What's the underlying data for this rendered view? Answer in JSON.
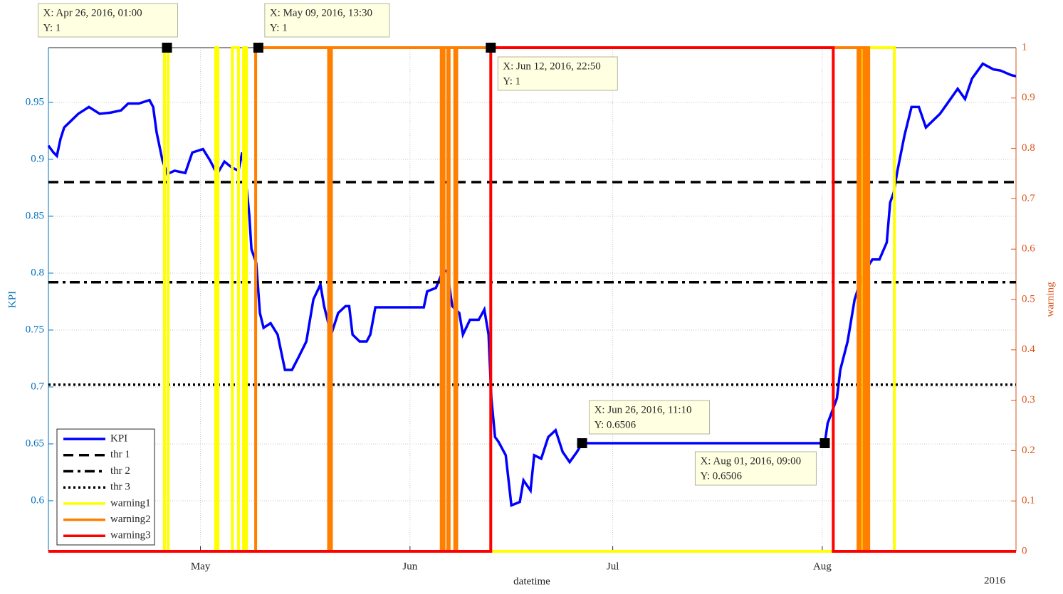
{
  "chart_data": {
    "type": "line",
    "xlabel": "datetime",
    "x_secondary_label": "2016",
    "ylabel": "KPI",
    "y2label": "warning",
    "y_color": "#0072bd",
    "y2_color": "#d95319",
    "xlim": [
      "2016-04-08T12:00",
      "2016-08-29T16:00"
    ],
    "xticks": [
      {
        "value": "2016-05-01T00:00",
        "label": "May"
      },
      {
        "value": "2016-06-01T00:00",
        "label": "Jun"
      },
      {
        "value": "2016-07-01T00:00",
        "label": "Jul"
      },
      {
        "value": "2016-08-01T00:00",
        "label": "Aug"
      }
    ],
    "ylim": [
      0.5556,
      0.9981
    ],
    "yticks": [
      0.6,
      0.65,
      0.7,
      0.75,
      0.8,
      0.85,
      0.9,
      0.95
    ],
    "y2lim": [
      0,
      1
    ],
    "y2ticks": [
      0,
      0.1,
      0.2,
      0.3,
      0.4,
      0.5,
      0.6,
      0.7,
      0.8,
      0.9,
      1
    ],
    "grid": true,
    "legend_position": "southwest",
    "series": [
      {
        "name": "KPI",
        "color": "#0000ff",
        "style": "solid",
        "x": [
          "2016-04-08T12:00",
          "2016-04-09T06:00",
          "2016-04-09T18:00",
          "2016-04-10T07:00",
          "2016-04-10T20:00",
          "2016-04-11T21:00",
          "2016-04-12T22:00",
          "2016-04-14T12:00",
          "2016-04-16T02:00",
          "2016-04-17T16:00",
          "2016-04-19T06:00",
          "2016-04-20T07:00",
          "2016-04-21T21:00",
          "2016-04-23T11:00",
          "2016-04-24T00:00",
          "2016-04-24T12:00",
          "2016-04-25T09:00",
          "2016-04-26T02:00",
          "2016-04-27T04:00",
          "2016-04-28T18:00",
          "2016-04-29T19:00",
          "2016-05-01T09:00",
          "2016-05-02T10:00",
          "2016-05-03T11:00",
          "2016-05-04T13:00",
          "2016-05-05T14:00",
          "2016-05-06T15:00",
          "2016-05-07T04:00",
          "2016-05-07T16:00",
          "2016-05-08T05:00",
          "2016-05-08T13:00",
          "2016-05-09T06:00",
          "2016-05-09T19:00",
          "2016-05-10T08:00",
          "2016-05-11T09:00",
          "2016-05-12T10:00",
          "2016-05-13T12:00",
          "2016-05-14T13:00",
          "2016-05-15T14:00",
          "2016-05-16T16:00",
          "2016-05-17T17:00",
          "2016-05-18T18:00",
          "2016-05-19T07:00",
          "2016-05-20T08:00",
          "2016-05-21T09:00",
          "2016-05-22T11:00",
          "2016-05-23T00:00",
          "2016-05-23T12:00",
          "2016-05-24T13:00",
          "2016-05-25T14:00",
          "2016-05-26T03:00",
          "2016-05-26T21:00",
          "2016-06-03T01:00",
          "2016-06-03T13:00",
          "2016-06-04T20:00",
          "2016-06-05T21:00",
          "2016-06-06T12:00",
          "2016-06-07T06:00",
          "2016-06-08T07:00",
          "2016-06-08T20:00",
          "2016-06-09T21:00",
          "2016-06-11T04:00",
          "2016-06-12T00:00",
          "2016-06-12T15:00",
          "2016-06-13T01:00",
          "2016-06-13T14:00",
          "2016-06-14T02:00",
          "2016-06-15T04:00",
          "2016-06-16T00:00",
          "2016-06-17T06:00",
          "2016-06-17T19:00",
          "2016-06-18T20:00",
          "2016-06-19T09:00",
          "2016-06-20T10:00",
          "2016-06-21T11:00",
          "2016-06-22T13:00",
          "2016-06-23T14:00",
          "2016-06-24T15:00",
          "2016-06-25T17:00",
          "2016-06-26T11:10",
          "2016-08-01T09:00",
          "2016-08-01T19:00",
          "2016-08-02T10:00",
          "2016-08-03T04:00",
          "2016-08-03T16:00",
          "2016-08-04T18:00",
          "2016-08-05T19:00",
          "2016-08-06T12:00",
          "2016-08-07T08:00",
          "2016-08-08T10:00",
          "2016-08-09T11:00",
          "2016-08-10T13:00",
          "2016-08-11T01:00",
          "2016-08-11T14:00",
          "2016-08-12T03:00",
          "2016-08-13T04:00",
          "2016-08-14T05:00",
          "2016-08-15T07:00",
          "2016-08-16T08:00",
          "2016-08-17T09:00",
          "2016-08-18T10:00",
          "2016-08-19T12:00",
          "2016-08-21T01:00",
          "2016-08-22T03:00",
          "2016-08-23T04:00",
          "2016-08-24T18:00",
          "2016-08-26T08:00",
          "2016-08-27T09:00",
          "2016-08-28T23:00",
          "2016-08-29T16:00"
        ],
        "values": [
          0.912,
          0.906,
          0.903,
          0.918,
          0.928,
          0.934,
          0.94,
          0.946,
          0.94,
          0.941,
          0.943,
          0.949,
          0.949,
          0.952,
          0.946,
          0.924,
          0.899,
          0.887,
          0.89,
          0.888,
          0.906,
          0.909,
          0.899,
          0.887,
          0.898,
          0.893,
          0.89,
          0.906,
          0.884,
          0.852,
          0.821,
          0.809,
          0.765,
          0.752,
          0.756,
          0.746,
          0.715,
          0.715,
          0.727,
          0.74,
          0.777,
          0.79,
          0.771,
          0.746,
          0.765,
          0.771,
          0.771,
          0.746,
          0.74,
          0.74,
          0.746,
          0.77,
          0.77,
          0.784,
          0.787,
          0.802,
          0.802,
          0.771,
          0.765,
          0.746,
          0.759,
          0.759,
          0.768,
          0.746,
          0.69,
          0.656,
          0.652,
          0.64,
          0.596,
          0.599,
          0.618,
          0.609,
          0.64,
          0.637,
          0.656,
          0.662,
          0.643,
          0.634,
          0.643,
          0.6506,
          0.6506,
          0.668,
          0.678,
          0.69,
          0.715,
          0.74,
          0.777,
          0.79,
          0.802,
          0.812,
          0.812,
          0.827,
          0.862,
          0.871,
          0.89,
          0.921,
          0.946,
          0.946,
          0.928,
          0.934,
          0.94,
          0.949,
          0.962,
          0.953,
          0.971,
          0.984,
          0.979,
          0.978,
          0.974,
          0.973
        ]
      },
      {
        "name": "thr 1",
        "color": "#000000",
        "style": "dashed",
        "value": 0.88
      },
      {
        "name": "thr 2",
        "color": "#000000",
        "style": "dashdot",
        "value": 0.792
      },
      {
        "name": "thr 3",
        "color": "#000000",
        "style": "dotted",
        "value": 0.702
      },
      {
        "name": "warning1",
        "color": "#ffff00",
        "style": "solid",
        "axis": "y2",
        "x": [
          "2016-04-08T12:00",
          "2016-04-25T16:00",
          "2016-04-25T16:00",
          "2016-04-26T05:00",
          "2016-04-26T05:00",
          "2016-05-03T06:00",
          "2016-05-03T06:00",
          "2016-05-03T14:00",
          "2016-05-03T14:00",
          "2016-05-05T17:00",
          "2016-05-05T17:00",
          "2016-05-06T15:00",
          "2016-05-06T15:00",
          "2016-05-07T09:00",
          "2016-05-07T09:00",
          "2016-05-07T19:00",
          "2016-05-07T19:00",
          "2016-08-07T01:00",
          "2016-08-07T01:00",
          "2016-08-11T16:00",
          "2016-08-11T16:00",
          "2016-08-29T16:00"
        ],
        "values": [
          0,
          0,
          1,
          1,
          0,
          0,
          1,
          1,
          0,
          0,
          1,
          1,
          0,
          0,
          1,
          1,
          0,
          0,
          1,
          1,
          0,
          0
        ]
      },
      {
        "name": "warning2",
        "color": "#ff8000",
        "style": "solid",
        "axis": "y2",
        "x": [
          "2016-04-08T12:00",
          "2016-05-09T04:00",
          "2016-05-09T04:00",
          "2016-05-19T23:00",
          "2016-05-19T23:00",
          "2016-05-20T09:00",
          "2016-05-20T09:00",
          "2016-06-05T15:00",
          "2016-06-05T15:00",
          "2016-06-06T01:00",
          "2016-06-06T01:00",
          "2016-06-06T14:00",
          "2016-06-06T14:00",
          "2016-06-06T19:00",
          "2016-06-06T19:00",
          "2016-06-07T15:00",
          "2016-06-07T15:00",
          "2016-06-07T22:00",
          "2016-06-07T22:00",
          "2016-08-06T07:00",
          "2016-08-06T07:00",
          "2016-08-06T15:00",
          "2016-08-06T15:00",
          "2016-08-07T04:00",
          "2016-08-07T04:00",
          "2016-08-07T11:00",
          "2016-08-07T11:00",
          "2016-08-07T21:00",
          "2016-08-07T21:00",
          "2016-08-29T16:00"
        ],
        "values": [
          0,
          0,
          1,
          1,
          0,
          0,
          1,
          1,
          0,
          0,
          1,
          1,
          0,
          0,
          1,
          1,
          0,
          0,
          1,
          1,
          0,
          0,
          1,
          1,
          0,
          0,
          1,
          1,
          0,
          0
        ]
      },
      {
        "name": "warning3",
        "color": "#ff0000",
        "style": "solid",
        "axis": "y2",
        "x": [
          "2016-04-08T12:00",
          "2016-06-12T22:50",
          "2016-06-12T22:50",
          "2016-08-02T15:00",
          "2016-08-02T15:00",
          "2016-08-29T16:00"
        ],
        "values": [
          0,
          0,
          1,
          1,
          0,
          0
        ]
      }
    ],
    "datatips": [
      {
        "x": "2016-04-26T01:00",
        "y": 1,
        "axis": "y2",
        "label_x": "X: Apr 26, 2016, 01:00",
        "label_y": "Y: 1"
      },
      {
        "x": "2016-05-09T13:30",
        "y": 1,
        "axis": "y2",
        "label_x": "X: May 09, 2016, 13:30",
        "label_y": "Y: 1"
      },
      {
        "x": "2016-06-12T22:50",
        "y": 1,
        "axis": "y2",
        "label_x": "X: Jun 12, 2016, 22:50",
        "label_y": "Y: 1"
      },
      {
        "x": "2016-06-26T11:10",
        "y": 0.6506,
        "label_x": "X: Jun 26, 2016, 11:10",
        "label_y": "Y: 0.6506"
      },
      {
        "x": "2016-08-01T09:00",
        "y": 0.6506,
        "label_x": "X: Aug 01, 2016, 09:00",
        "label_y": "Y: 0.6506"
      }
    ]
  }
}
